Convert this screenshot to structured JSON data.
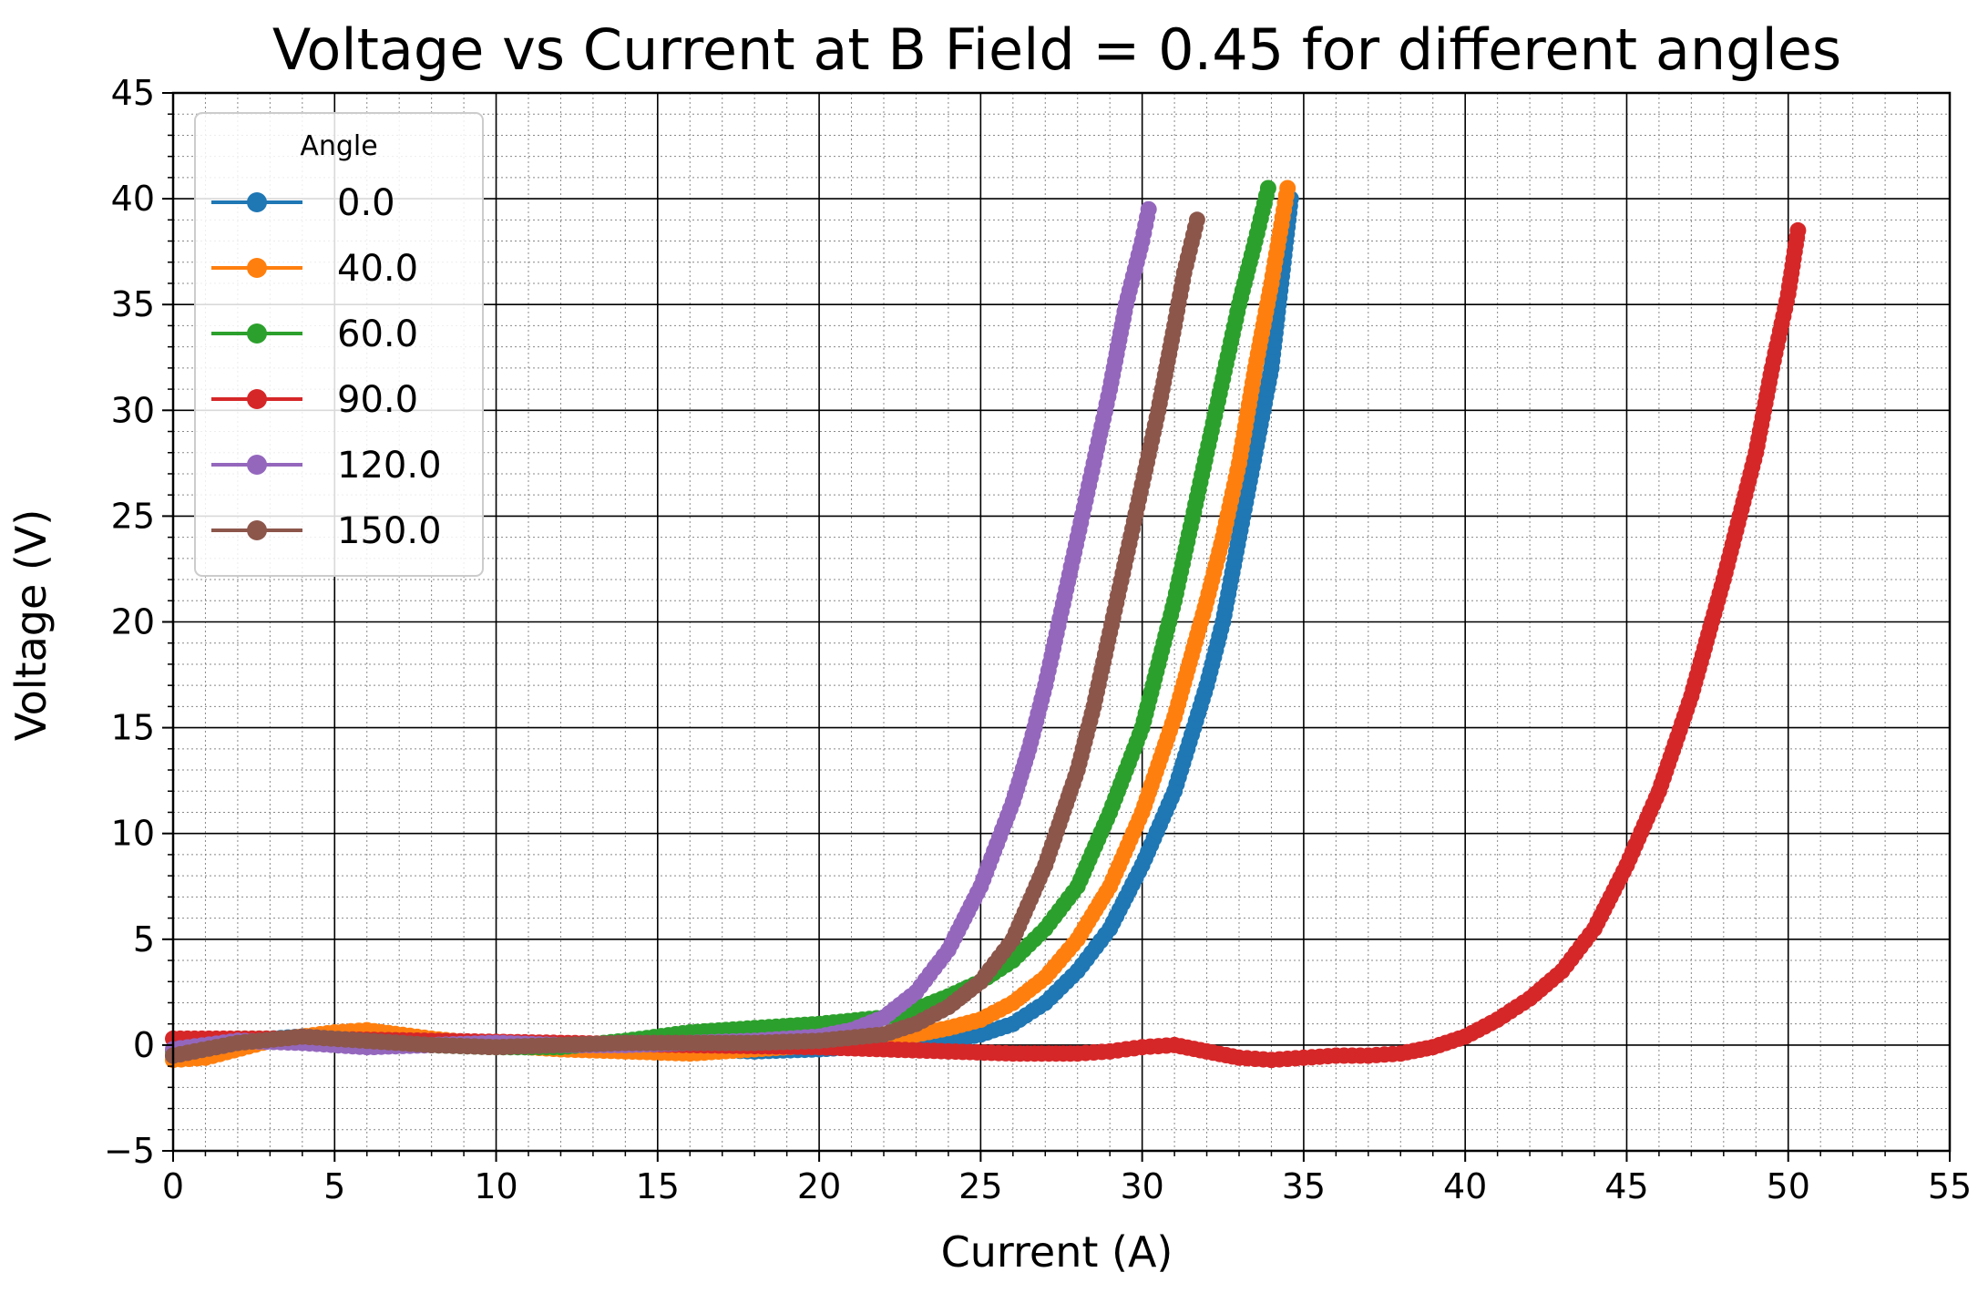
{
  "chart_data": {
    "type": "line",
    "title": "Voltage vs Current at B Field = 0.45 for different angles",
    "xlabel": "Current (A)",
    "ylabel": "Voltage (V)",
    "xlim": [
      0,
      55
    ],
    "ylim": [
      -5,
      45
    ],
    "xticks": [
      0,
      5,
      10,
      15,
      20,
      25,
      30,
      35,
      40,
      45,
      50,
      55
    ],
    "yticks": [
      -5,
      0,
      5,
      10,
      15,
      20,
      25,
      30,
      35,
      40,
      45
    ],
    "tick_labels_x": [
      "0",
      "5",
      "10",
      "15",
      "20",
      "25",
      "30",
      "35",
      "40",
      "45",
      "50",
      "55"
    ],
    "tick_labels_y": [
      "−5",
      "0",
      "5",
      "10",
      "15",
      "20",
      "25",
      "30",
      "35",
      "40",
      "45"
    ],
    "grid": true,
    "minor_grid": true,
    "legend": {
      "title": "Angle",
      "placement": "top-left"
    },
    "series": [
      {
        "name": "0.0",
        "color": "#1f77b4",
        "x": [
          0,
          2,
          4,
          6,
          8,
          10,
          12,
          14,
          16,
          18,
          20,
          22,
          24,
          25,
          26,
          27,
          28,
          29,
          30,
          31,
          32,
          32.5,
          33,
          33.5,
          34,
          34.3,
          34.6
        ],
        "y": [
          -0.5,
          0.2,
          0.4,
          0.2,
          0,
          0,
          -0.1,
          0,
          -0.2,
          -0.3,
          -0.2,
          0,
          0.2,
          0.5,
          1.0,
          2.0,
          3.5,
          5.5,
          8.5,
          12,
          17,
          20,
          24,
          28,
          32,
          36,
          40
        ]
      },
      {
        "name": "40.0",
        "color": "#ff7f0e",
        "x": [
          0,
          1,
          3,
          5,
          6,
          8,
          10,
          12,
          14,
          16,
          18,
          20,
          22,
          23,
          24,
          25,
          26,
          27,
          28,
          29,
          30,
          31,
          32,
          32.5,
          33,
          33.5,
          34,
          34.5
        ],
        "y": [
          -0.7,
          -0.6,
          0.2,
          0.6,
          0.7,
          0.3,
          0,
          -0.2,
          -0.3,
          -0.4,
          -0.2,
          0,
          0.3,
          0.5,
          0.8,
          1.2,
          2.0,
          3.2,
          5.0,
          7.5,
          11,
          15.5,
          21,
          24,
          27.5,
          32,
          36,
          40.5
        ]
      },
      {
        "name": "60.0",
        "color": "#2ca02c",
        "x": [
          0,
          2,
          4,
          6,
          8,
          10,
          12,
          14,
          16,
          18,
          20,
          22,
          23,
          24,
          25,
          26,
          27,
          28,
          29,
          30,
          31,
          31.5,
          32,
          32.5,
          33,
          33.5,
          33.9
        ],
        "y": [
          -0.3,
          0.3,
          0.3,
          0.1,
          0,
          -0.1,
          -0.1,
          0.2,
          0.6,
          0.8,
          1.0,
          1.3,
          1.7,
          2.3,
          3.0,
          4.0,
          5.5,
          7.5,
          11,
          15,
          21,
          24.5,
          28,
          31.5,
          35,
          38,
          40.5
        ]
      },
      {
        "name": "90.0",
        "color": "#d62728",
        "x": [
          0,
          4,
          8,
          12,
          16,
          20,
          22,
          24,
          26,
          28,
          29,
          30,
          31,
          32,
          33,
          34,
          35,
          36,
          37,
          38,
          39,
          40,
          41,
          42,
          43,
          44,
          45,
          46,
          47,
          48,
          49,
          49.5,
          50,
          50.3
        ],
        "y": [
          0.3,
          0.3,
          0.2,
          0.1,
          0,
          -0.1,
          -0.2,
          -0.3,
          -0.4,
          -0.4,
          -0.3,
          -0.1,
          0,
          -0.3,
          -0.6,
          -0.7,
          -0.6,
          -0.5,
          -0.5,
          -0.4,
          -0.1,
          0.4,
          1.2,
          2.2,
          3.5,
          5.5,
          8.5,
          12,
          16.5,
          22,
          28,
          32,
          35.5,
          38.5
        ]
      },
      {
        "name": "120.0",
        "color": "#9467bd",
        "x": [
          0,
          2,
          4,
          6,
          8,
          10,
          12,
          14,
          16,
          18,
          20,
          21,
          22,
          23,
          24,
          25,
          26,
          26.5,
          27,
          27.5,
          28,
          28.5,
          29,
          29.5,
          30,
          30.2
        ],
        "y": [
          -0.2,
          0.2,
          0.1,
          -0.1,
          0,
          0.1,
          0,
          0,
          0.1,
          0.2,
          0.4,
          0.7,
          1.3,
          2.5,
          4.5,
          7.5,
          11.5,
          14,
          17,
          20.5,
          24,
          27.5,
          31,
          35,
          38,
          39.5
        ]
      },
      {
        "name": "150.0",
        "color": "#8c564b",
        "x": [
          0,
          2,
          4,
          6,
          8,
          10,
          12,
          14,
          16,
          18,
          20,
          22,
          23,
          24,
          25,
          26,
          27,
          28,
          28.5,
          29,
          29.5,
          30,
          30.5,
          31,
          31.3,
          31.7
        ],
        "y": [
          -0.5,
          0.1,
          0.4,
          0.2,
          0,
          -0.1,
          0,
          0.1,
          0.1,
          0.1,
          0.2,
          0.5,
          1.0,
          1.8,
          3.0,
          5.0,
          8.5,
          13,
          16,
          19.5,
          23,
          26.5,
          30,
          34,
          36.5,
          39
        ]
      }
    ]
  }
}
